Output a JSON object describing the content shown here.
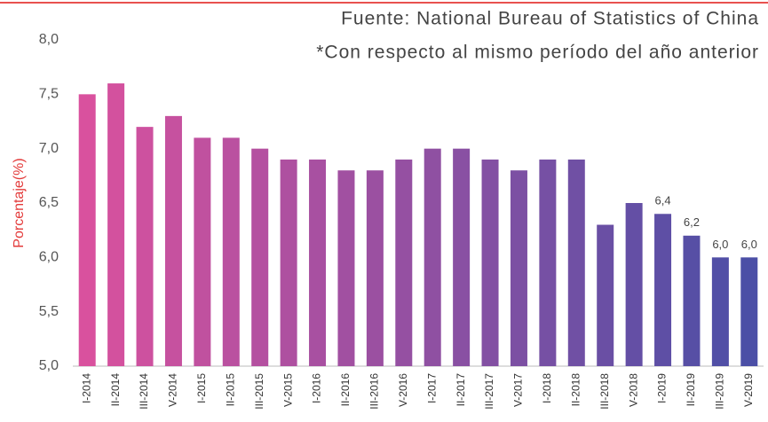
{
  "chart_data": {
    "type": "bar",
    "title": "Fuente: National Bureau of Statistics of China",
    "subtitle": "*Con respecto al mismo período del año anterior",
    "y_label": "Porcentaje(%)",
    "categories": [
      "I-2014",
      "II-2014",
      "III-2014",
      "V-2014",
      "I-2015",
      "II-2015",
      "III-2015",
      "V-2015",
      "I-2016",
      "II-2016",
      "III-2016",
      "V-2016",
      "I-2017",
      "II-2017",
      "III-2017",
      "V-2017",
      "I-2018",
      "II-2018",
      "III-2018",
      "V-2018",
      "I-2019",
      "II-2019",
      "III-2019",
      "V-2019"
    ],
    "values": [
      7.5,
      7.6,
      7.2,
      7.3,
      7.1,
      7.1,
      7.0,
      6.9,
      6.9,
      6.8,
      6.8,
      6.9,
      7.0,
      7.0,
      6.9,
      6.8,
      6.9,
      6.9,
      6.3,
      6.5,
      6.4,
      6.2,
      6.0,
      6.0
    ],
    "value_labels": [
      null,
      null,
      null,
      null,
      null,
      null,
      null,
      null,
      null,
      null,
      null,
      null,
      null,
      null,
      null,
      null,
      null,
      null,
      null,
      null,
      "6,4",
      "6,2",
      "6,0",
      "6,0"
    ],
    "gradient": [
      "#d9519e",
      "#4b4fa6"
    ],
    "ylim": [
      5,
      8
    ],
    "yticks": [
      {
        "value": 5,
        "label": "5,0"
      },
      {
        "value": 5.5,
        "label": "5,5"
      },
      {
        "value": 6,
        "label": "6,0"
      },
      {
        "value": 6.5,
        "label": "6,5"
      },
      {
        "value": 7,
        "label": "7,0"
      },
      {
        "value": 7.5,
        "label": "7,5"
      },
      {
        "value": 8,
        "label": "8,0"
      }
    ],
    "grid": false
  }
}
